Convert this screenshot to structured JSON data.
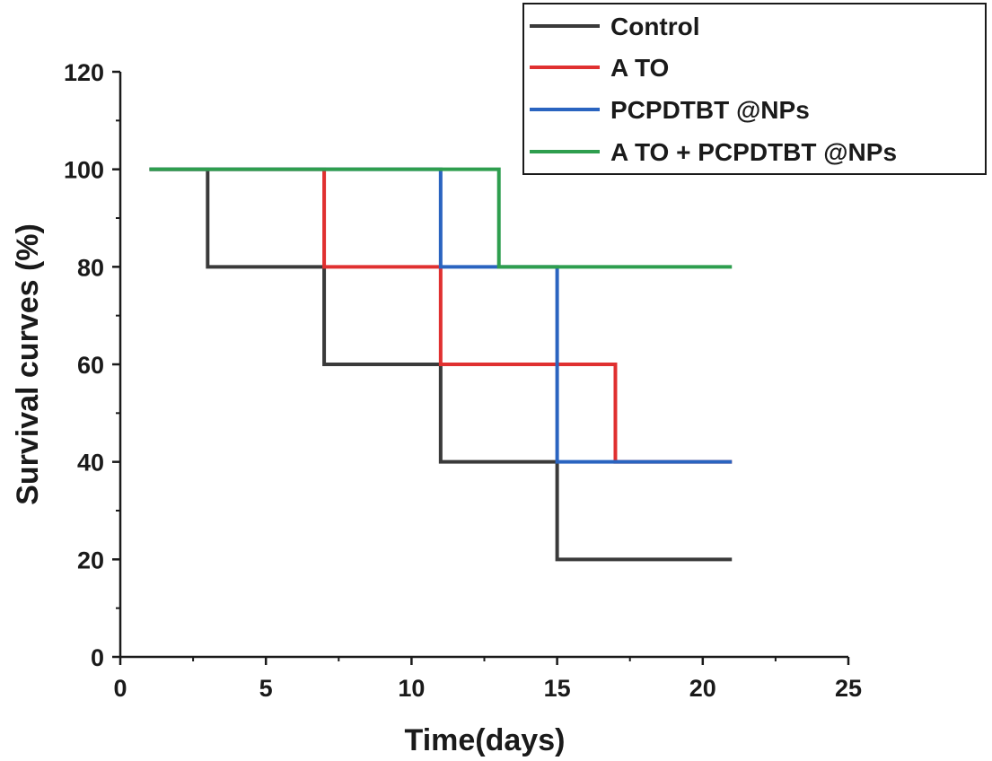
{
  "chart_data": {
    "type": "line",
    "subtype": "step",
    "title": "",
    "xlabel": "Time(days)",
    "ylabel": "Survival curves (%)",
    "xlim": [
      0,
      25
    ],
    "ylim": [
      0,
      120
    ],
    "xticks": [
      0,
      5,
      10,
      15,
      20,
      25
    ],
    "xtick_labels": [
      "0",
      "5",
      "10",
      "15",
      "20",
      "25"
    ],
    "yticks": [
      0,
      20,
      40,
      60,
      80,
      100,
      120
    ],
    "ytick_labels": [
      "0",
      "20",
      "40",
      "60",
      "80",
      "100",
      "120"
    ],
    "grid": false,
    "legend_position": "top-right",
    "series": [
      {
        "name": "Control",
        "color": "#3a3a3a",
        "x": [
          1,
          3,
          7,
          11,
          15,
          21
        ],
        "values": [
          100,
          80,
          60,
          40,
          20,
          20
        ]
      },
      {
        "name": "A TO",
        "color": "#e03030",
        "x": [
          1,
          7,
          11,
          17,
          21
        ],
        "values": [
          100,
          80,
          60,
          40,
          40
        ]
      },
      {
        "name": "PCPDTBT @NPs",
        "color": "#2a64c0",
        "x": [
          1,
          11,
          15,
          21
        ],
        "values": [
          100,
          80,
          40,
          40
        ]
      },
      {
        "name": "A TO + PCPDTBT @NPs",
        "color": "#2e9e4e",
        "x": [
          1,
          13,
          21
        ],
        "values": [
          100,
          80,
          80
        ]
      }
    ]
  }
}
